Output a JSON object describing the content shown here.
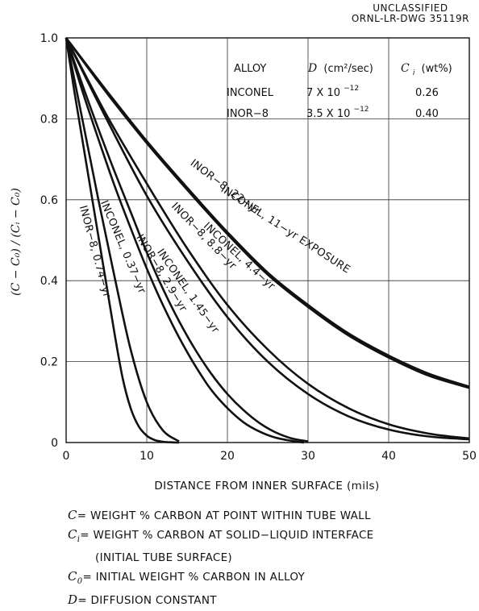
{
  "header": {
    "classification": "UNCLASSIFIED",
    "drawing_number": "ORNL-LR-DWG 35119R"
  },
  "alloy_table": {
    "headers": {
      "alloy": "ALLOY",
      "d_symbol": "D",
      "d_units": "(cm²/sec)",
      "ci_symbol": "C",
      "ci_sub": "i",
      "ci_units": "(wt%)"
    },
    "rows": [
      {
        "alloy": "INCONEL",
        "d_mantissa": "7 X 10",
        "d_exp": "−12",
        "ci": "0.26"
      },
      {
        "alloy": "INOR−8",
        "d_mantissa": "3.5 X 10",
        "d_exp": "−12",
        "ci": "0.40"
      }
    ]
  },
  "chart_data": {
    "type": "line",
    "xlabel": "DISTANCE FROM INNER SURFACE (mils)",
    "ylabel": "(C − C₀) / (Cᵢ − C₀)",
    "xlim": [
      0,
      50
    ],
    "ylim": [
      0,
      1.0
    ],
    "x_ticks": [
      "0",
      "10",
      "20",
      "30",
      "40",
      "50"
    ],
    "y_ticks": [
      "0",
      "0.2",
      "0.4",
      "0.6",
      "0.8",
      "1.0"
    ],
    "grid": true,
    "series": [
      {
        "name": "INOR−8, 0.74−yr",
        "x": [
          0,
          1,
          2,
          3,
          4,
          5,
          6,
          7,
          8,
          9,
          10,
          11,
          12,
          13,
          14
        ],
        "y": [
          1.0,
          0.87,
          0.75,
          0.63,
          0.51,
          0.39,
          0.27,
          0.16,
          0.085,
          0.04,
          0.017,
          0.006,
          0.002,
          0.0005,
          0
        ]
      },
      {
        "name": "INCONEL, 0.37−yr",
        "x": [
          0,
          2,
          4,
          6,
          8,
          10,
          12,
          14
        ],
        "y": [
          1.0,
          0.8,
          0.6,
          0.41,
          0.23,
          0.1,
          0.03,
          0.003
        ]
      },
      {
        "name": "INOR−8, 2.9−yr",
        "x": [
          0,
          2,
          4,
          6,
          8,
          10,
          12,
          14,
          16,
          18,
          20,
          22,
          24,
          26,
          28,
          29.5
        ],
        "y": [
          1.0,
          0.87,
          0.75,
          0.635,
          0.53,
          0.43,
          0.34,
          0.26,
          0.19,
          0.13,
          0.085,
          0.05,
          0.027,
          0.012,
          0.004,
          0
        ]
      },
      {
        "name": "INCONEL, 1.45−yr",
        "x": [
          0,
          2,
          4,
          6,
          8,
          10,
          12,
          14,
          16,
          18,
          20,
          22,
          24,
          26,
          28,
          30
        ],
        "y": [
          1.0,
          0.885,
          0.775,
          0.67,
          0.57,
          0.47,
          0.38,
          0.3,
          0.23,
          0.17,
          0.12,
          0.08,
          0.048,
          0.025,
          0.01,
          0.003
        ]
      },
      {
        "name": "INOR−8, 8.8−yr",
        "x": [
          0,
          5,
          10,
          15,
          20,
          25,
          30,
          35,
          40,
          45,
          50
        ],
        "y": [
          1.0,
          0.8,
          0.61,
          0.45,
          0.31,
          0.2,
          0.12,
          0.065,
          0.032,
          0.015,
          0.008
        ]
      },
      {
        "name": "INCONEL, 4.4−yr",
        "x": [
          0,
          5,
          10,
          15,
          20,
          25,
          30,
          35,
          40,
          45,
          50
        ],
        "y": [
          1.0,
          0.81,
          0.64,
          0.48,
          0.34,
          0.23,
          0.145,
          0.085,
          0.045,
          0.022,
          0.01
        ]
      },
      {
        "name": "INOR−8, 22−yr",
        "x": [
          0,
          5,
          10,
          15,
          20,
          25,
          30,
          35,
          40,
          45,
          50
        ],
        "y": [
          1.0,
          0.865,
          0.74,
          0.625,
          0.515,
          0.415,
          0.335,
          0.265,
          0.21,
          0.165,
          0.135
        ]
      },
      {
        "name": "INCONEL, 11−yr EXPOSURE",
        "x": [
          0,
          5,
          10,
          15,
          20,
          25,
          30,
          35,
          40,
          45,
          50
        ],
        "y": [
          1.0,
          0.87,
          0.745,
          0.63,
          0.52,
          0.42,
          0.34,
          0.27,
          0.215,
          0.17,
          0.138
        ]
      }
    ]
  },
  "legend_notes": [
    {
      "symbol": "C",
      "sub": "",
      "text": "= WEIGHT % CARBON AT POINT WITHIN TUBE WALL"
    },
    {
      "symbol": "C",
      "sub": "i",
      "text": "= WEIGHT % CARBON AT SOLID−LIQUID INTERFACE"
    },
    {
      "symbol": "",
      "sub": "",
      "text": "(INITIAL TUBE SURFACE)"
    },
    {
      "symbol": "C",
      "sub": "0",
      "text": "= INITIAL WEIGHT % CARBON IN ALLOY"
    },
    {
      "symbol": "D",
      "sub": "",
      "text": "= DIFFUSION CONSTANT"
    }
  ]
}
